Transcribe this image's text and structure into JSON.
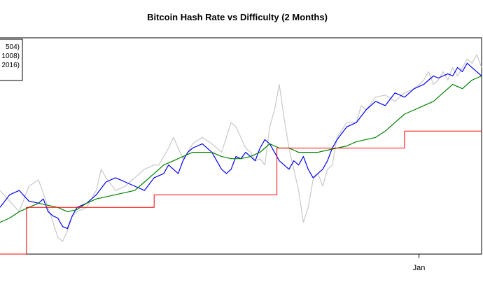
{
  "chart_data": {
    "type": "line",
    "title": "Bitcoin Hash Rate vs Difficulty (2 Months)",
    "xlabel": "",
    "ylabel": "",
    "x_tick_labels": [
      "Jan"
    ],
    "x_tick_positions": [
      87
    ],
    "xlim": [
      0,
      100
    ],
    "ylim": [
      0,
      100
    ],
    "grid": false,
    "legend_position": "top-left",
    "legend_entries": [
      "504)",
      "1008)",
      "2016)"
    ],
    "series": [
      {
        "color": "#c8c8c8",
        "x": [
          0,
          2,
          4,
          6,
          8,
          10,
          11,
          12,
          13,
          14,
          15,
          16,
          18,
          20,
          21,
          22,
          24,
          26,
          28,
          30,
          32,
          33,
          34,
          35,
          36,
          37,
          38,
          39,
          40,
          42,
          44,
          45,
          46,
          47,
          48,
          49,
          50,
          51,
          52,
          53,
          54,
          55,
          56,
          57,
          58,
          59,
          60,
          61,
          62,
          63,
          64,
          65,
          66,
          67,
          68,
          69,
          70,
          72,
          74,
          75,
          76,
          78,
          80,
          82,
          84,
          86,
          88,
          89,
          90,
          91,
          92,
          93,
          94,
          95,
          96,
          97,
          98,
          99,
          100
        ],
        "y": [
          30,
          25,
          20,
          32,
          35,
          22,
          15,
          8,
          6,
          11,
          18,
          20,
          22,
          30,
          40,
          36,
          30,
          32,
          36,
          40,
          42,
          42,
          46,
          50,
          55,
          50,
          45,
          48,
          52,
          55,
          52,
          50,
          48,
          55,
          62,
          60,
          55,
          50,
          48,
          44,
          45,
          42,
          60,
          68,
          80,
          64,
          50,
          40,
          30,
          15,
          22,
          35,
          38,
          32,
          40,
          42,
          55,
          62,
          62,
          70,
          68,
          74,
          75,
          72,
          76,
          78,
          82,
          86,
          80,
          82,
          86,
          82,
          88,
          84,
          88,
          92,
          90,
          94,
          88
        ]
      },
      {
        "color": "#0000ff",
        "x": [
          0,
          2,
          4,
          6,
          8,
          9,
          10,
          11,
          12,
          13,
          14,
          15,
          16,
          18,
          20,
          22,
          24,
          26,
          28,
          30,
          32,
          34,
          35,
          36,
          37,
          38,
          39,
          40,
          42,
          44,
          45,
          46,
          47,
          48,
          49,
          50,
          51,
          52,
          53,
          54,
          55,
          56,
          57,
          58,
          59,
          60,
          61,
          62,
          63,
          64,
          65,
          66,
          67,
          68,
          69,
          70,
          72,
          74,
          76,
          78,
          80,
          82,
          84,
          86,
          88,
          89,
          90,
          91,
          92,
          93,
          94,
          95,
          96,
          97,
          98,
          99,
          100
        ],
        "y": [
          22,
          28,
          30,
          25,
          24,
          26,
          20,
          18,
          17,
          13,
          12,
          18,
          22,
          24,
          28,
          34,
          36,
          34,
          32,
          30,
          36,
          38,
          42,
          40,
          38,
          44,
          48,
          50,
          52,
          48,
          44,
          40,
          38,
          40,
          46,
          45,
          48,
          46,
          44,
          50,
          54,
          52,
          48,
          44,
          42,
          40,
          44,
          42,
          46,
          40,
          36,
          38,
          40,
          44,
          50,
          54,
          60,
          62,
          68,
          72,
          70,
          76,
          74,
          78,
          80,
          82,
          84,
          83,
          84,
          85,
          84,
          88,
          86,
          90,
          88,
          86,
          84
        ]
      },
      {
        "color": "#008000",
        "x": [
          0,
          2,
          4,
          6,
          8,
          10,
          12,
          14,
          16,
          18,
          20,
          22,
          24,
          26,
          28,
          30,
          32,
          34,
          36,
          38,
          40,
          42,
          44,
          46,
          48,
          50,
          52,
          54,
          55,
          56,
          57,
          58,
          60,
          62,
          64,
          66,
          68,
          70,
          72,
          74,
          76,
          78,
          80,
          82,
          84,
          86,
          88,
          90,
          92,
          94,
          96,
          98,
          100
        ],
        "y": [
          15,
          17,
          20,
          22,
          24,
          23,
          22,
          20,
          21,
          24,
          26,
          27,
          28,
          29,
          30,
          34,
          38,
          42,
          44,
          46,
          48,
          48,
          48,
          46,
          45,
          45,
          46,
          48,
          50,
          52,
          51,
          50,
          50,
          48,
          48,
          48,
          49,
          50,
          51,
          53,
          54,
          55,
          58,
          62,
          66,
          68,
          70,
          72,
          76,
          80,
          78,
          82,
          84
        ]
      },
      {
        "color": "#ff0000",
        "x": [
          0,
          5.5,
          5.5,
          32,
          32,
          57.5,
          57.5,
          84,
          84,
          100
        ],
        "y": [
          0,
          0,
          22,
          22,
          28,
          28,
          50,
          50,
          58,
          58
        ]
      }
    ]
  }
}
